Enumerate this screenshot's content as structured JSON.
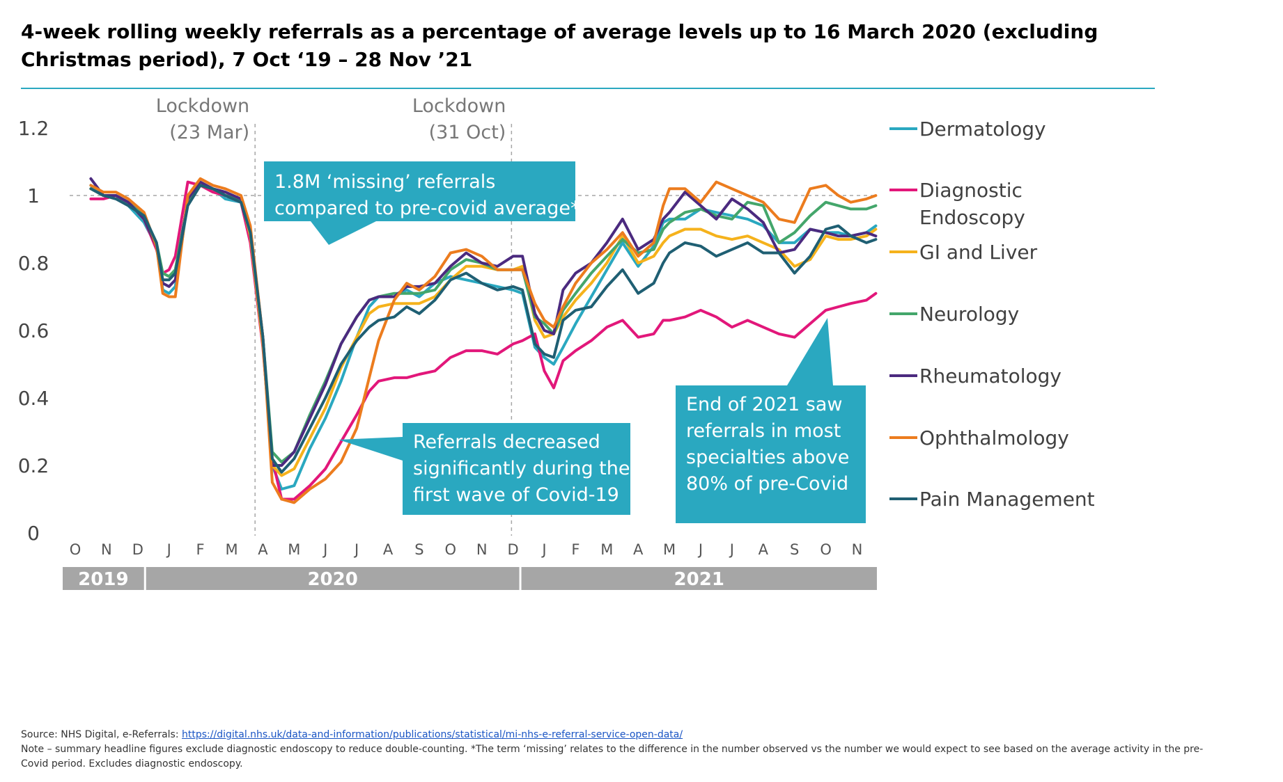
{
  "title": "4-week rolling weekly referrals as a percentage of average levels up to 16 March 2020 (excluding Christmas period), 7 Oct ‘19 – 28 Nov ’21",
  "footer": {
    "source_prefix": "Source: NHS Digital, e-Referrals: ",
    "source_link": "https://digital.nhs.uk/data-and-information/publications/statistical/mi-nhs-e-referral-service-open-data/",
    "note": "Note – summary headline figures exclude diagnostic endoscopy to reduce double-counting. *The term ‘missing’ relates to the difference in the number observed vs the number we would expect to see based on the average activity in the pre-Covid period. Excludes diagnostic endoscopy."
  },
  "colors": {
    "accent": "#2aa8c0",
    "callout": "#2aa8c0",
    "year_band": "#a6a6a6",
    "grid_ref": "#a6a6a6"
  },
  "chart_data": {
    "type": "line",
    "title": "4-week rolling weekly referrals as a percentage of average levels up to 16 March 2020 (excluding Christmas period), 7 Oct ‘19 – 28 Nov ’21",
    "xlabel": "",
    "ylabel": "",
    "ylim": [
      0,
      1.2
    ],
    "yticks": [
      "0",
      "0.2",
      "0.4",
      "0.6",
      "0.8",
      "1",
      "1.2"
    ],
    "ytick_values": [
      0,
      0.2,
      0.4,
      0.6,
      0.8,
      1,
      1.2
    ],
    "reference_line": 1,
    "month_labels": [
      "O",
      "N",
      "D",
      "J",
      "F",
      "M",
      "A",
      "M",
      "J",
      "J",
      "A",
      "S",
      "O",
      "N",
      "D",
      "J",
      "F",
      "M",
      "A",
      "M",
      "J",
      "J",
      "A",
      "S",
      "O",
      "N"
    ],
    "years": [
      {
        "label": "2019",
        "start_month": 0,
        "end_month": 2.6
      },
      {
        "label": "2020",
        "start_month": 2.6,
        "end_month": 14.6
      },
      {
        "label": "2021",
        "start_month": 14.6,
        "end_month": 25.5
      }
    ],
    "x_unit": "months since 1 Oct 2019 (0 = O tick)",
    "series": [
      {
        "name": "Dermatology",
        "color": "#2aa8c0",
        "x": [
          0.5,
          0.9,
          1.3,
          1.7,
          2.2,
          2.6,
          2.8,
          3.0,
          3.2,
          3.6,
          4.0,
          4.4,
          4.8,
          5.3,
          5.6,
          6.0,
          6.3,
          6.6,
          7.0,
          7.5,
          8.0,
          8.5,
          9.0,
          9.4,
          9.7,
          10.2,
          10.6,
          11.0,
          11.5,
          12.0,
          12.5,
          13.0,
          13.5,
          14.0,
          14.3,
          14.7,
          15.0,
          15.3,
          15.6,
          16.0,
          16.5,
          17.0,
          17.5,
          18.0,
          18.5,
          18.8,
          19.0,
          19.5,
          20.0,
          20.5,
          21.0,
          21.5,
          22.0,
          22.5,
          23.0,
          23.5,
          24.0,
          24.4,
          24.8,
          25.3,
          25.6
        ],
        "y": [
          1.03,
          1.0,
          1.0,
          0.97,
          0.92,
          0.85,
          0.72,
          0.71,
          0.73,
          0.98,
          1.03,
          1.02,
          0.99,
          0.98,
          0.88,
          0.56,
          0.2,
          0.13,
          0.14,
          0.25,
          0.34,
          0.45,
          0.58,
          0.67,
          0.7,
          0.7,
          0.72,
          0.7,
          0.74,
          0.76,
          0.75,
          0.74,
          0.73,
          0.72,
          0.71,
          0.55,
          0.52,
          0.5,
          0.55,
          0.62,
          0.7,
          0.78,
          0.86,
          0.79,
          0.85,
          0.92,
          0.93,
          0.93,
          0.96,
          0.95,
          0.94,
          0.93,
          0.91,
          0.86,
          0.86,
          0.9,
          0.89,
          0.89,
          0.88,
          0.89,
          0.91
        ]
      },
      {
        "name": "Diagnostic Endoscopy",
        "color": "#e2177a",
        "x": [
          0.5,
          0.9,
          1.3,
          1.7,
          2.2,
          2.6,
          2.8,
          3.0,
          3.2,
          3.6,
          4.0,
          4.4,
          4.8,
          5.3,
          5.6,
          6.0,
          6.3,
          6.6,
          7.0,
          7.5,
          8.0,
          8.5,
          9.0,
          9.4,
          9.7,
          10.2,
          10.6,
          11.0,
          11.5,
          12.0,
          12.5,
          13.0,
          13.5,
          14.0,
          14.3,
          14.7,
          15.0,
          15.3,
          15.6,
          16.0,
          16.5,
          17.0,
          17.5,
          18.0,
          18.5,
          18.8,
          19.0,
          19.5,
          20.0,
          20.5,
          21.0,
          21.5,
          22.0,
          22.5,
          23.0,
          23.5,
          24.0,
          24.4,
          24.8,
          25.3,
          25.6
        ],
        "y": [
          0.99,
          0.99,
          1.0,
          0.98,
          0.93,
          0.84,
          0.77,
          0.78,
          0.82,
          1.04,
          1.03,
          1.01,
          1.0,
          0.98,
          0.86,
          0.55,
          0.22,
          0.1,
          0.1,
          0.14,
          0.19,
          0.27,
          0.35,
          0.42,
          0.45,
          0.46,
          0.46,
          0.47,
          0.48,
          0.52,
          0.54,
          0.54,
          0.53,
          0.56,
          0.57,
          0.59,
          0.48,
          0.43,
          0.51,
          0.54,
          0.57,
          0.61,
          0.63,
          0.58,
          0.59,
          0.63,
          0.63,
          0.64,
          0.66,
          0.64,
          0.61,
          0.63,
          0.61,
          0.59,
          0.58,
          0.62,
          0.66,
          0.67,
          0.68,
          0.69,
          0.71
        ]
      },
      {
        "name": "GI and Liver",
        "color": "#f5b21c",
        "x": [
          0.5,
          0.9,
          1.3,
          1.7,
          2.2,
          2.6,
          2.8,
          3.0,
          3.2,
          3.6,
          4.0,
          4.4,
          4.8,
          5.3,
          5.6,
          6.0,
          6.3,
          6.6,
          7.0,
          7.5,
          8.0,
          8.5,
          9.0,
          9.4,
          9.7,
          10.2,
          10.6,
          11.0,
          11.5,
          12.0,
          12.5,
          13.0,
          13.5,
          14.0,
          14.3,
          14.7,
          15.0,
          15.3,
          15.6,
          16.0,
          16.5,
          17.0,
          17.5,
          18.0,
          18.5,
          18.8,
          19.0,
          19.5,
          20.0,
          20.5,
          21.0,
          21.5,
          22.0,
          22.5,
          23.0,
          23.5,
          24.0,
          24.4,
          24.8,
          25.3,
          25.6
        ],
        "y": [
          1.02,
          1.0,
          1.0,
          0.98,
          0.93,
          0.85,
          0.77,
          0.76,
          0.78,
          0.98,
          1.03,
          1.02,
          1.0,
          0.99,
          0.88,
          0.56,
          0.2,
          0.17,
          0.19,
          0.28,
          0.37,
          0.49,
          0.58,
          0.65,
          0.67,
          0.68,
          0.68,
          0.68,
          0.7,
          0.75,
          0.79,
          0.79,
          0.78,
          0.78,
          0.79,
          0.63,
          0.58,
          0.59,
          0.64,
          0.69,
          0.74,
          0.8,
          0.88,
          0.8,
          0.82,
          0.86,
          0.88,
          0.9,
          0.9,
          0.88,
          0.87,
          0.88,
          0.86,
          0.84,
          0.79,
          0.81,
          0.88,
          0.87,
          0.87,
          0.88,
          0.9
        ]
      },
      {
        "name": "Neurology",
        "color": "#44a66b",
        "x": [
          0.5,
          0.9,
          1.3,
          1.7,
          2.2,
          2.6,
          2.8,
          3.0,
          3.2,
          3.6,
          4.0,
          4.4,
          4.8,
          5.3,
          5.6,
          6.0,
          6.3,
          6.6,
          7.0,
          7.5,
          8.0,
          8.5,
          9.0,
          9.4,
          9.7,
          10.2,
          10.6,
          11.0,
          11.5,
          12.0,
          12.5,
          13.0,
          13.5,
          14.0,
          14.3,
          14.7,
          15.0,
          15.3,
          15.6,
          16.0,
          16.5,
          17.0,
          17.5,
          18.0,
          18.5,
          18.8,
          19.0,
          19.5,
          20.0,
          20.5,
          21.0,
          21.5,
          22.0,
          22.5,
          23.0,
          23.5,
          24.0,
          24.4,
          24.8,
          25.3,
          25.6
        ],
        "y": [
          1.02,
          1.0,
          1.0,
          0.98,
          0.94,
          0.86,
          0.77,
          0.76,
          0.78,
          0.98,
          1.03,
          1.02,
          1.0,
          0.99,
          0.89,
          0.58,
          0.24,
          0.21,
          0.24,
          0.35,
          0.45,
          0.56,
          0.64,
          0.69,
          0.7,
          0.71,
          0.71,
          0.71,
          0.72,
          0.78,
          0.81,
          0.8,
          0.78,
          0.78,
          0.78,
          0.64,
          0.62,
          0.59,
          0.66,
          0.71,
          0.77,
          0.82,
          0.87,
          0.83,
          0.84,
          0.9,
          0.92,
          0.95,
          0.96,
          0.94,
          0.93,
          0.98,
          0.97,
          0.86,
          0.89,
          0.94,
          0.98,
          0.97,
          0.96,
          0.96,
          0.97
        ]
      },
      {
        "name": "Rheumatology",
        "color": "#4b2a7f",
        "x": [
          0.5,
          0.9,
          1.3,
          1.7,
          2.2,
          2.6,
          2.8,
          3.0,
          3.2,
          3.6,
          4.0,
          4.4,
          4.8,
          5.3,
          5.6,
          6.0,
          6.3,
          6.6,
          7.0,
          7.5,
          8.0,
          8.5,
          9.0,
          9.4,
          9.7,
          10.2,
          10.6,
          11.0,
          11.5,
          12.0,
          12.5,
          13.0,
          13.5,
          14.0,
          14.3,
          14.7,
          15.0,
          15.3,
          15.6,
          16.0,
          16.5,
          17.0,
          17.5,
          18.0,
          18.5,
          18.8,
          19.0,
          19.5,
          20.0,
          20.5,
          21.0,
          21.5,
          22.0,
          22.5,
          23.0,
          23.5,
          24.0,
          24.4,
          24.8,
          25.3,
          25.6
        ],
        "y": [
          1.05,
          1.0,
          1.0,
          0.98,
          0.93,
          0.85,
          0.74,
          0.73,
          0.75,
          0.99,
          1.04,
          1.02,
          1.01,
          0.99,
          0.9,
          0.58,
          0.2,
          0.2,
          0.24,
          0.34,
          0.44,
          0.56,
          0.64,
          0.69,
          0.7,
          0.7,
          0.73,
          0.73,
          0.74,
          0.79,
          0.83,
          0.8,
          0.79,
          0.82,
          0.82,
          0.65,
          0.6,
          0.59,
          0.72,
          0.77,
          0.8,
          0.86,
          0.93,
          0.84,
          0.87,
          0.93,
          0.95,
          1.01,
          0.97,
          0.93,
          0.99,
          0.96,
          0.92,
          0.83,
          0.84,
          0.9,
          0.89,
          0.88,
          0.88,
          0.89,
          0.88
        ]
      },
      {
        "name": "Ophthalmology",
        "color": "#ec7c1e",
        "x": [
          0.5,
          0.9,
          1.3,
          1.7,
          2.2,
          2.6,
          2.8,
          3.0,
          3.2,
          3.6,
          4.0,
          4.4,
          4.8,
          5.3,
          5.6,
          6.0,
          6.3,
          6.6,
          7.0,
          7.5,
          8.0,
          8.5,
          9.0,
          9.4,
          9.7,
          10.2,
          10.6,
          11.0,
          11.5,
          12.0,
          12.5,
          13.0,
          13.5,
          14.0,
          14.3,
          14.7,
          15.0,
          15.3,
          15.6,
          16.0,
          16.5,
          17.0,
          17.5,
          18.0,
          18.5,
          18.8,
          19.0,
          19.5,
          20.0,
          20.5,
          21.0,
          21.5,
          22.0,
          22.5,
          23.0,
          23.5,
          24.0,
          24.4,
          24.8,
          25.3,
          25.6
        ],
        "y": [
          1.03,
          1.01,
          1.01,
          0.99,
          0.95,
          0.85,
          0.71,
          0.7,
          0.7,
          1.0,
          1.05,
          1.03,
          1.02,
          1.0,
          0.91,
          0.58,
          0.15,
          0.1,
          0.09,
          0.13,
          0.16,
          0.21,
          0.31,
          0.46,
          0.57,
          0.69,
          0.74,
          0.72,
          0.76,
          0.83,
          0.84,
          0.82,
          0.78,
          0.78,
          0.78,
          0.68,
          0.63,
          0.61,
          0.67,
          0.74,
          0.8,
          0.84,
          0.89,
          0.82,
          0.86,
          0.97,
          1.02,
          1.02,
          0.98,
          1.04,
          1.02,
          1.0,
          0.98,
          0.93,
          0.92,
          1.02,
          1.03,
          1.0,
          0.98,
          0.99,
          1.0
        ]
      },
      {
        "name": "Pain Management",
        "color": "#1f5f73",
        "x": [
          0.5,
          0.9,
          1.3,
          1.7,
          2.2,
          2.6,
          2.8,
          3.0,
          3.2,
          3.6,
          4.0,
          4.4,
          4.8,
          5.3,
          5.6,
          6.0,
          6.3,
          6.6,
          7.0,
          7.5,
          8.0,
          8.5,
          9.0,
          9.4,
          9.7,
          10.2,
          10.6,
          11.0,
          11.5,
          12.0,
          12.5,
          13.0,
          13.5,
          14.0,
          14.3,
          14.7,
          15.0,
          15.3,
          15.6,
          16.0,
          16.5,
          17.0,
          17.5,
          18.0,
          18.5,
          18.8,
          19.0,
          19.5,
          20.0,
          20.5,
          21.0,
          21.5,
          22.0,
          22.5,
          23.0,
          23.5,
          24.0,
          24.4,
          24.8,
          25.3,
          25.6
        ],
        "y": [
          1.02,
          1.0,
          0.99,
          0.97,
          0.94,
          0.86,
          0.75,
          0.75,
          0.77,
          0.97,
          1.03,
          1.02,
          1.0,
          0.98,
          0.89,
          0.58,
          0.22,
          0.18,
          0.22,
          0.31,
          0.4,
          0.5,
          0.57,
          0.61,
          0.63,
          0.64,
          0.67,
          0.65,
          0.69,
          0.75,
          0.77,
          0.74,
          0.72,
          0.73,
          0.72,
          0.56,
          0.53,
          0.52,
          0.63,
          0.66,
          0.67,
          0.73,
          0.78,
          0.71,
          0.74,
          0.8,
          0.83,
          0.86,
          0.85,
          0.82,
          0.84,
          0.86,
          0.83,
          0.83,
          0.77,
          0.82,
          0.9,
          0.91,
          0.88,
          0.86,
          0.87
        ]
      }
    ],
    "lockdowns": [
      {
        "label_line1": "Lockdown",
        "label_line2": "(23 Mar)",
        "month": 5.75
      },
      {
        "label_line1": "Lockdown",
        "label_line2": "(31 Oct)",
        "month": 13.95
      }
    ],
    "annotations": [
      {
        "id": "missing",
        "lines": [
          "1.8M ‘missing’ referrals",
          "compared to pre-covid average*"
        ]
      },
      {
        "id": "decrease",
        "lines": [
          "Referrals decreased",
          "significantly during the",
          "first wave of Covid-19"
        ]
      },
      {
        "id": "end2021",
        "lines": [
          "End of 2021 saw",
          "referrals in most",
          "specialties above",
          "80% of pre-Covid"
        ]
      }
    ],
    "legend": {
      "placement": "right",
      "entries": [
        {
          "lines": [
            "Dermatology"
          ],
          "series": 0
        },
        {
          "lines": [
            "Diagnostic",
            "Endoscopy"
          ],
          "series": 1
        },
        {
          "lines": [
            "GI and Liver"
          ],
          "series": 2
        },
        {
          "lines": [
            "Neurology"
          ],
          "series": 3
        },
        {
          "lines": [
            "Rheumatology"
          ],
          "series": 4
        },
        {
          "lines": [
            "Ophthalmology"
          ],
          "series": 5
        },
        {
          "lines": [
            "Pain Management"
          ],
          "series": 6
        }
      ]
    }
  }
}
